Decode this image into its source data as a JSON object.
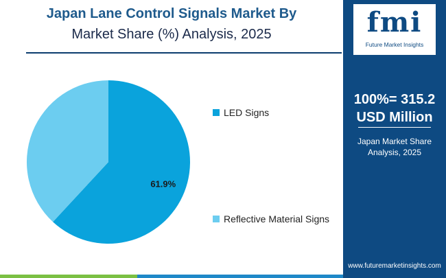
{
  "title_line1": "Japan Lane Control Signals Market By",
  "title_line2": "Market Share (%) Analysis, 2025",
  "colors": {
    "led": "#0aa3dc",
    "reflective": "#6ccdf0",
    "panel": "#0e4a82"
  },
  "side_panel": {
    "logo_text": "fmi",
    "logo_subtext": "Future Market Insights",
    "total_line1": "100%= 315.2",
    "total_line2": "USD Million",
    "sub_line1": "Japan Market Share",
    "sub_line2": "Analysis, 2025",
    "website": "www.futuremarketinsights.com"
  },
  "chart_data": {
    "type": "pie",
    "title": "Japan Lane Control Signals Market By Market Share (%) Analysis, 2025",
    "slices": [
      {
        "label": "LED Signs",
        "value": 61.9,
        "data_label": "61.9%",
        "color": "#0aa3dc"
      },
      {
        "label": "Reflective Material Signs",
        "value": 38.1,
        "data_label": "",
        "color": "#6ccdf0"
      }
    ],
    "legend_position": "right"
  }
}
